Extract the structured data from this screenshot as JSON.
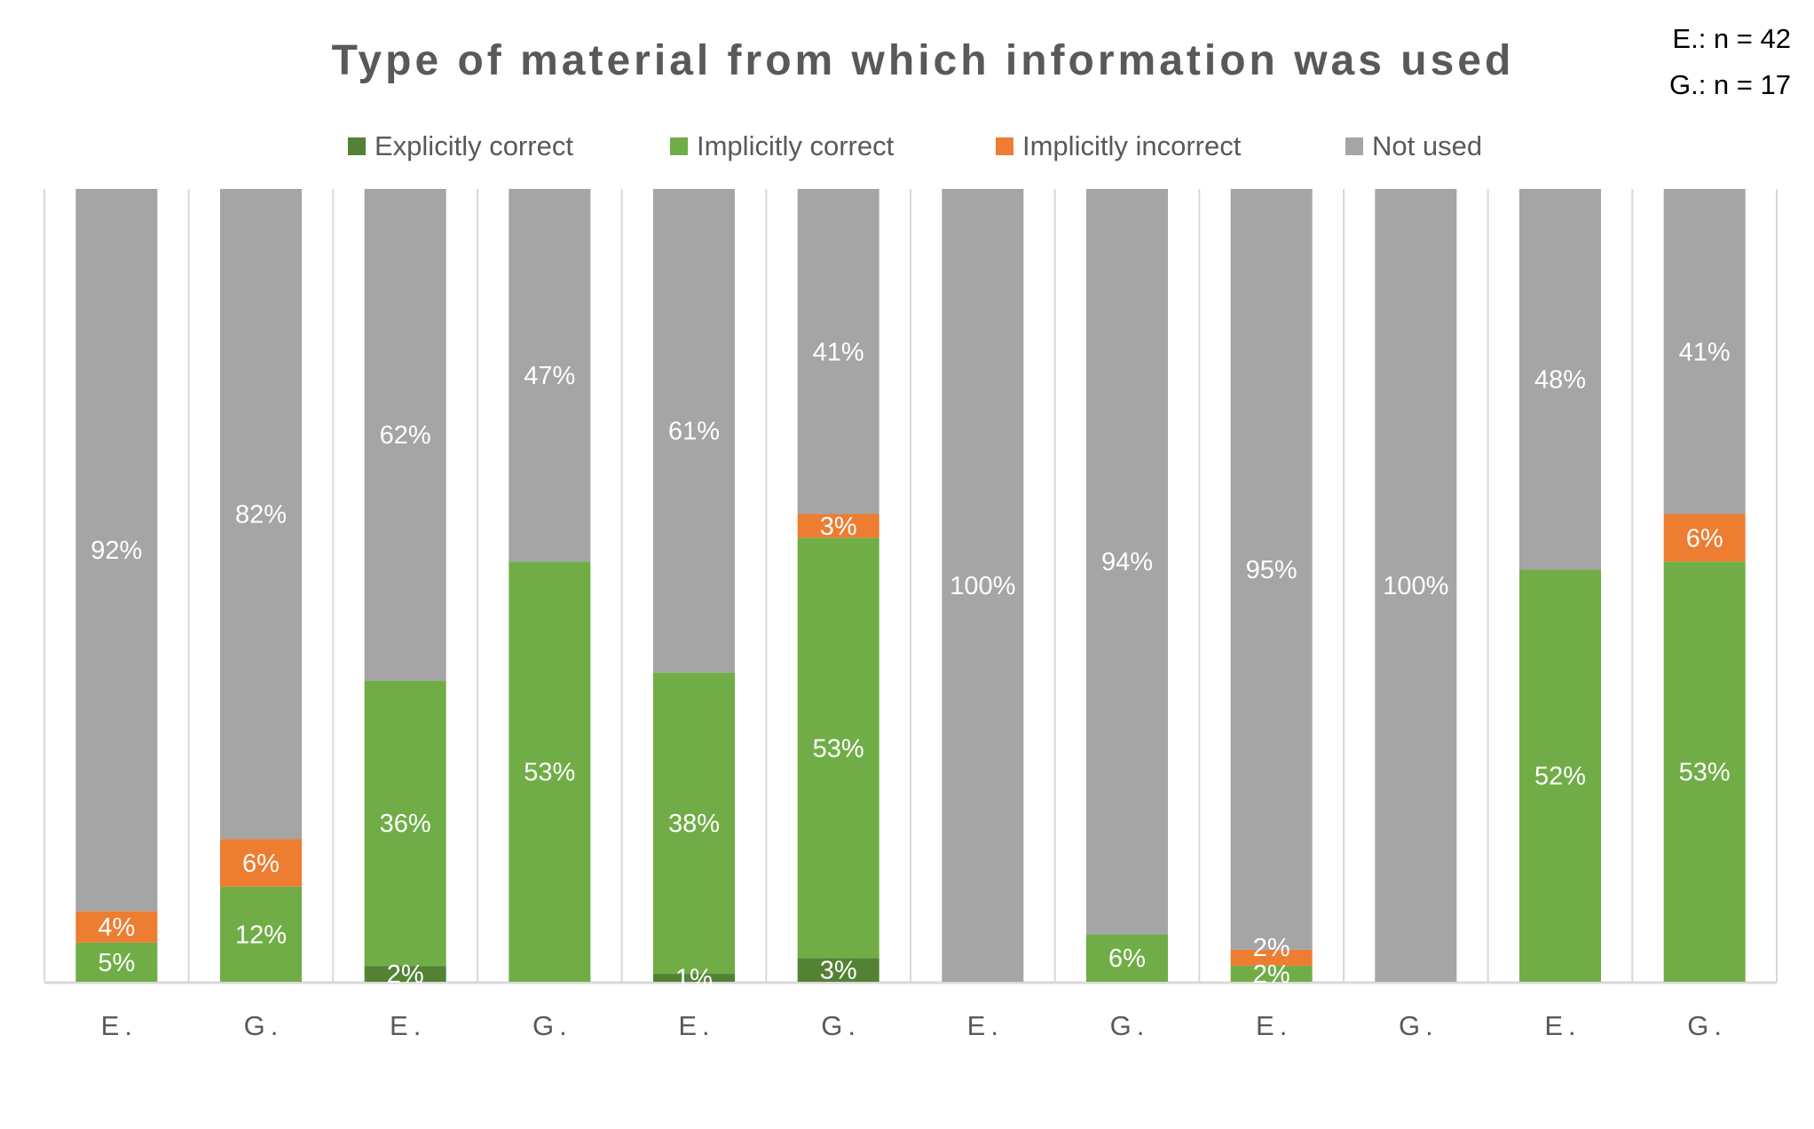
{
  "chart_data": {
    "type": "bar",
    "stacked": true,
    "orientation": "vertical",
    "title": "Type of material from which information was used",
    "annotations": [
      "E.: n = 42",
      "G.: n = 17"
    ],
    "categories": [
      "E.",
      "G.",
      "E.",
      "G.",
      "E.",
      "G.",
      "E.",
      "G.",
      "E.",
      "G.",
      "E.",
      "G."
    ],
    "legend_position": "top",
    "ylim": [
      0,
      100
    ],
    "unit": "%",
    "grid": "vertical category separators",
    "series": [
      {
        "name": "Explicitly correct",
        "color": "#548235",
        "values": [
          0,
          0,
          2,
          0,
          1,
          3,
          0,
          0,
          0,
          0,
          0,
          0
        ]
      },
      {
        "name": "Implicitly correct",
        "color": "#70AD47",
        "values": [
          5,
          12,
          36,
          53,
          38,
          53,
          0,
          6,
          2,
          0,
          52,
          53
        ]
      },
      {
        "name": "Implicitly incorrect",
        "color": "#ED7D31",
        "values": [
          4,
          6,
          0,
          0,
          0,
          3,
          0,
          0,
          2,
          0,
          0,
          6
        ]
      },
      {
        "name": "Not used",
        "color": "#A5A5A5",
        "values": [
          92,
          82,
          62,
          47,
          61,
          41,
          100,
          94,
          95,
          100,
          48,
          41
        ]
      }
    ]
  }
}
